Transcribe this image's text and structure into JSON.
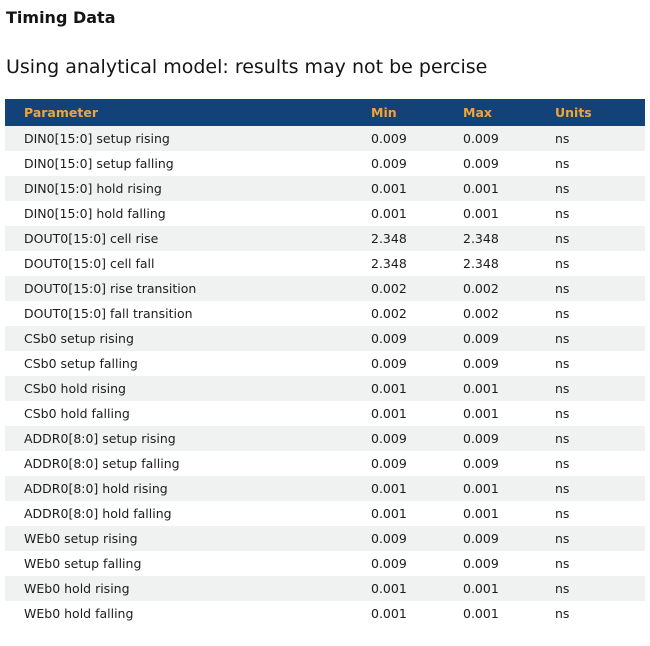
{
  "page": {
    "title": "Timing Data",
    "subtitle": "Using analytical model: results may not be percise"
  },
  "colors": {
    "header_bg": "#134278",
    "header_text": "#F0A43C",
    "row_alt_bg": "#F0F1F1"
  },
  "table": {
    "columns": [
      "Parameter",
      "Min",
      "Max",
      "Units"
    ],
    "rows": [
      [
        "DIN0[15:0] setup rising",
        "0.009",
        "0.009",
        "ns"
      ],
      [
        "DIN0[15:0] setup falling",
        "0.009",
        "0.009",
        "ns"
      ],
      [
        "DIN0[15:0] hold rising",
        "0.001",
        "0.001",
        "ns"
      ],
      [
        "DIN0[15:0] hold falling",
        "0.001",
        "0.001",
        "ns"
      ],
      [
        "DOUT0[15:0] cell rise",
        "2.348",
        "2.348",
        "ns"
      ],
      [
        "DOUT0[15:0] cell fall",
        "2.348",
        "2.348",
        "ns"
      ],
      [
        "DOUT0[15:0] rise transition",
        "0.002",
        "0.002",
        "ns"
      ],
      [
        "DOUT0[15:0] fall transition",
        "0.002",
        "0.002",
        "ns"
      ],
      [
        "CSb0 setup rising",
        "0.009",
        "0.009",
        "ns"
      ],
      [
        "CSb0 setup falling",
        "0.009",
        "0.009",
        "ns"
      ],
      [
        "CSb0 hold rising",
        "0.001",
        "0.001",
        "ns"
      ],
      [
        "CSb0 hold falling",
        "0.001",
        "0.001",
        "ns"
      ],
      [
        "ADDR0[8:0] setup rising",
        "0.009",
        "0.009",
        "ns"
      ],
      [
        "ADDR0[8:0] setup falling",
        "0.009",
        "0.009",
        "ns"
      ],
      [
        "ADDR0[8:0] hold rising",
        "0.001",
        "0.001",
        "ns"
      ],
      [
        "ADDR0[8:0] hold falling",
        "0.001",
        "0.001",
        "ns"
      ],
      [
        "WEb0 setup rising",
        "0.009",
        "0.009",
        "ns"
      ],
      [
        "WEb0 setup falling",
        "0.009",
        "0.009",
        "ns"
      ],
      [
        "WEb0 hold rising",
        "0.001",
        "0.001",
        "ns"
      ],
      [
        "WEb0 hold falling",
        "0.001",
        "0.001",
        "ns"
      ]
    ]
  }
}
